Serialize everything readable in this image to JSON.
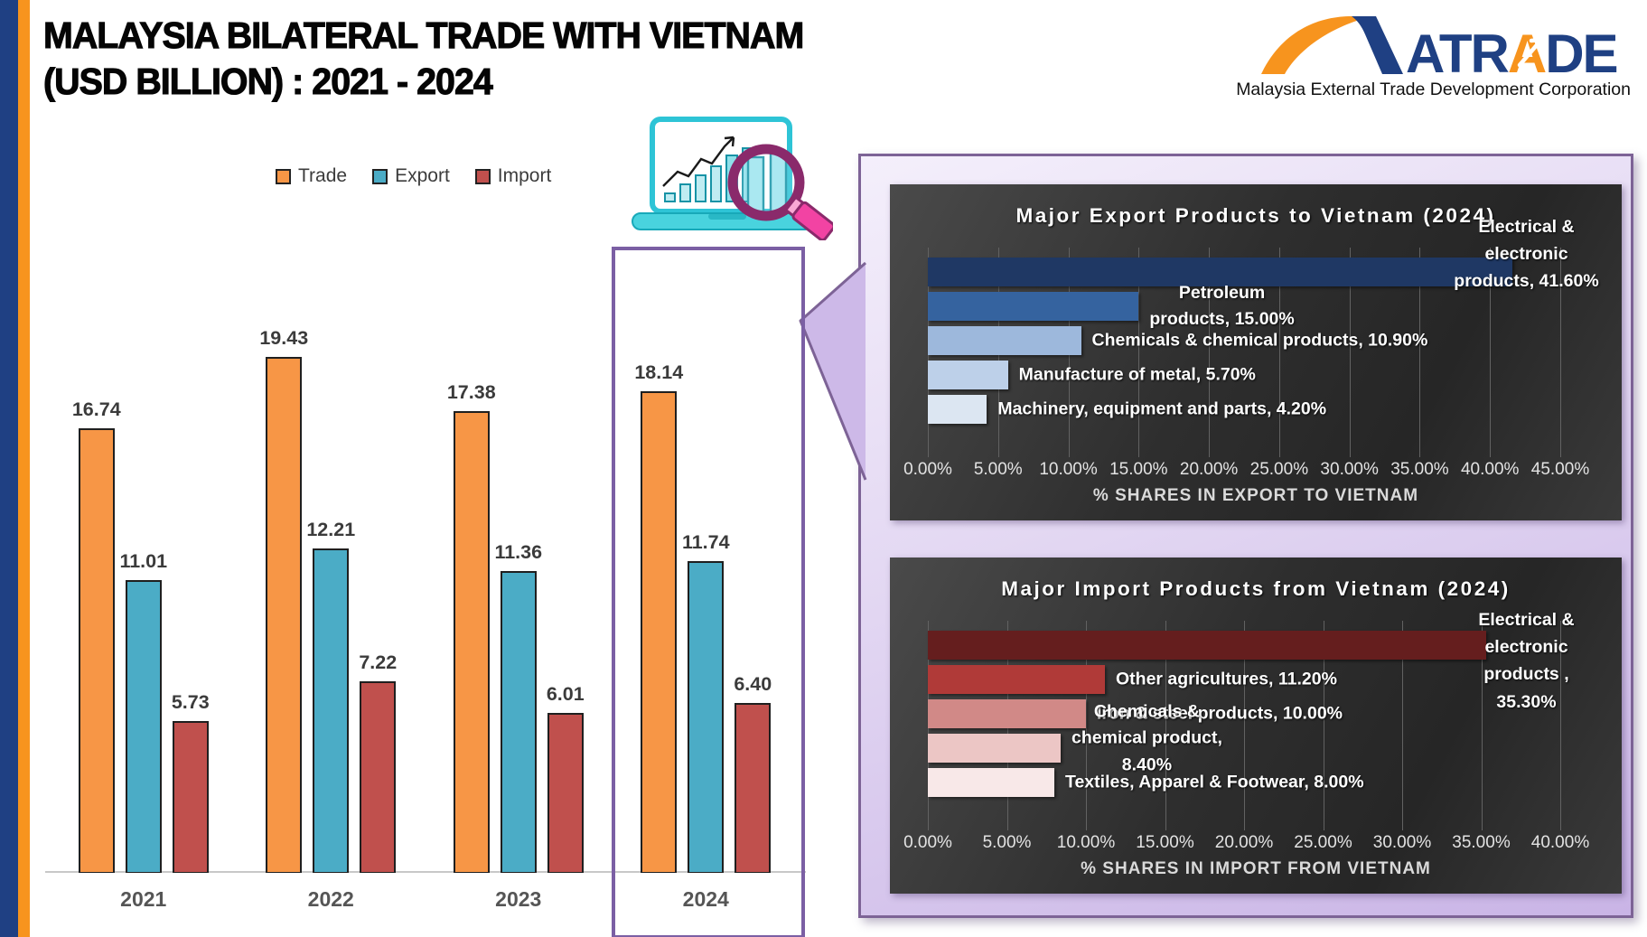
{
  "header": {
    "title_line1": "MALAYSIA BILATERAL TRADE WITH VIETNAM",
    "title_line2": "(USD BILLION) : 2021 - 2024"
  },
  "logo": {
    "brand_prefix": "ATR",
    "brand_accent": "A",
    "brand_suffix": "DE",
    "subtitle": "Malaysia External Trade Development Corporation"
  },
  "colors": {
    "stripe_blue": "#1F4083",
    "stripe_orange": "#F7941E",
    "panel_border": "#7D6396",
    "panel_fill": "#CDB9E8",
    "trade": "#F79646",
    "export": "#4BACC6",
    "import": "#C0504D",
    "export_bar_colors": [
      "#1F3864",
      "#35639F",
      "#9DB8DC",
      "#BDD0E9",
      "#DCE6F2"
    ],
    "import_bar_colors": [
      "#651E1E",
      "#B03A38",
      "#D18987",
      "#ECC6C5",
      "#F8E8E8"
    ]
  },
  "chart_data": [
    {
      "type": "bar",
      "title": "Malaysia bilateral trade with Vietnam (USD Billion), 2021 - 2024",
      "categories": [
        "2021",
        "2022",
        "2023",
        "2024"
      ],
      "series": [
        {
          "name": "Trade",
          "color": "#F79646",
          "values": [
            16.74,
            19.43,
            17.38,
            18.14
          ]
        },
        {
          "name": "Export",
          "color": "#4BACC6",
          "values": [
            11.01,
            12.21,
            11.36,
            11.74
          ]
        },
        {
          "name": "Import",
          "color": "#C0504D",
          "values": [
            5.73,
            7.22,
            6.01,
            6.4
          ]
        }
      ],
      "ylim": [
        0,
        20
      ],
      "grid": false,
      "legend_position": "top",
      "highlighted_category": "2024"
    },
    {
      "type": "bar",
      "orientation": "horizontal",
      "title": "Major Export Products to Vietnam (2024)",
      "xlabel": "% SHARES IN EXPORT TO VIETNAM",
      "xlim": [
        0,
        45
      ],
      "grid": true,
      "ticks": [
        "0.00%",
        "5.00%",
        "10.00%",
        "15.00%",
        "20.00%",
        "25.00%",
        "30.00%",
        "35.00%",
        "40.00%",
        "45.00%"
      ],
      "items": [
        {
          "category": "Electrical & electronic products",
          "value": 41.6,
          "label_lines": [
            "Electrical &",
            "electronic",
            "products, 41.60%"
          ],
          "label_placement": "right-edge"
        },
        {
          "category": "Petroleum products",
          "value": 15.0,
          "label_lines": [
            "Petroleum",
            "products, 15.00%"
          ],
          "label_placement": "after",
          "label_align": "center"
        },
        {
          "category": "Chemicals & chemical products",
          "value": 10.9,
          "label_lines": [
            "Chemicals & chemical products, 10.90%"
          ],
          "label_placement": "after"
        },
        {
          "category": "Manufacture of metal",
          "value": 5.7,
          "label_lines": [
            "Manufacture of metal, 5.70%"
          ],
          "label_placement": "after"
        },
        {
          "category": "Machinery, equipment and parts",
          "value": 4.2,
          "label_lines": [
            "Machinery, equipment and parts, 4.20%"
          ],
          "label_placement": "after"
        }
      ]
    },
    {
      "type": "bar",
      "orientation": "horizontal",
      "title": "Major Import Products from Vietnam (2024)",
      "xlabel": "% SHARES IN IMPORT FROM VIETNAM",
      "xlim": [
        0,
        40
      ],
      "grid": true,
      "ticks": [
        "0.00%",
        "5.00%",
        "10.00%",
        "15.00%",
        "20.00%",
        "25.00%",
        "30.00%",
        "35.00%",
        "40.00%"
      ],
      "items": [
        {
          "category": "Electrical & electronic products",
          "value": 35.3,
          "label_lines": [
            "Electrical &",
            "electronic",
            "products ,",
            "35.30%"
          ],
          "label_placement": "right-edge"
        },
        {
          "category": "Other agricultures",
          "value": 11.2,
          "label_lines": [
            "Other agricultures, 11.20%"
          ],
          "label_placement": "after"
        },
        {
          "category": "Iron & steel products",
          "value": 10.0,
          "label_lines": [
            "Iron & steel products, 10.00%"
          ],
          "label_placement": "after"
        },
        {
          "category": "Chemicals & chemical product",
          "value": 8.4,
          "label_lines": [
            "Chemicals &",
            "chemical product,",
            "8.40%"
          ],
          "label_placement": "after",
          "label_align": "center"
        },
        {
          "category": "Textiles, Apparel & Footwear",
          "value": 8.0,
          "label_lines": [
            "Textiles, Apparel & Footwear, 8.00%"
          ],
          "label_placement": "after"
        }
      ]
    }
  ]
}
